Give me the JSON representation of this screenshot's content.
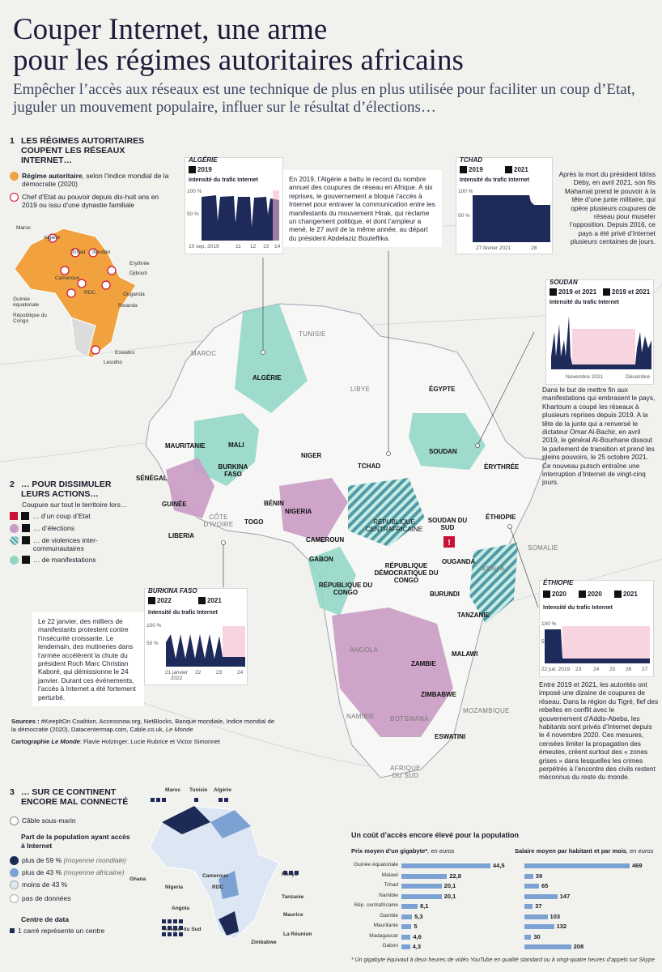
{
  "header": {
    "title_line1": "Couper Internet, une arme",
    "title_line2": "pour les régimes autoritaires africains",
    "subtitle": "Empêcher l’accès aux réseaux est une technique de plus en plus utilisée pour faciliter un coup d’Etat, juguler un mouvement populaire, influer sur le résultat d’élections…"
  },
  "section1": {
    "number": "1",
    "heading": "LES RÉGIMES AUTORITAIRES COUPENT LES RÉSEAUX INTERNET…",
    "legend_regime_bold": "Régime autoritaire",
    "legend_regime_rest": ", selon l’Indice mondial de la démocratie (2020)",
    "legend_chief": "Chef d’Etat au pouvoir depuis dix-huit ans en 2019 ou issu d’une dynastie familiale",
    "minimap_labels": [
      "Maroc",
      "Algérie",
      "Tchad",
      "Soudan",
      "Erythrée",
      "Djibouti",
      "Cameroun",
      "Guinée équatoriale",
      "RDC",
      "Ouganda",
      "Rwanda",
      "République du Congo",
      "Eswatini",
      "Lesotho"
    ]
  },
  "section2": {
    "number": "2",
    "heading": "… POUR DISSIMULER LEURS ACTIONS…",
    "intro": "Coupure sur tout le territoire lors…",
    "items": [
      "… d’un coup d’Etat",
      "… d’élections",
      "… de violences inter-communautaires",
      "… de manifestations"
    ]
  },
  "section3": {
    "number": "3",
    "heading": "… SUR CE CONTINENT ENCORE MAL CONNECTÉ",
    "cable": "Câble sous-marin",
    "share_title": "Part de la population ayant accès à Internet",
    "levels": [
      {
        "label": "plus de 59 %",
        "note": "(moyenne mondiale)",
        "color": "#1d2a55"
      },
      {
        "label": "plus de 43 %",
        "note": "(moyenne africaine)",
        "color": "#7ca1d3"
      },
      {
        "label": "moins de 43 %",
        "note": "",
        "color": "#dde6f3"
      },
      {
        "label": "pas de données",
        "note": "",
        "color": "#ffffff"
      }
    ],
    "dc_title": "Centre de data",
    "dc_note": "1 carré représente un centre",
    "map_labels": [
      "Maroc",
      "Tunisie",
      "Algérie",
      "Ghana",
      "Cameroun",
      "Nigeria",
      "RDC",
      "Kenya",
      "Tanzanie",
      "Angola",
      "Maurice",
      "La Réunion",
      "Afrique du Sud",
      "Zimbabwe"
    ]
  },
  "map_labels": {
    "countries_bold": [
      "ALGÉRIE",
      "MAURITANIE",
      "MALI",
      "NIGER",
      "TCHAD",
      "SOUDAN",
      "ÉGYPTE",
      "SÉNÉGAL",
      "BURKINA FASO",
      "GUINÉE",
      "LIBERIA",
      "BÉNIN",
      "TOGO",
      "NIGERIA",
      "CAMEROUN",
      "GABON",
      "RÉPUBLIQUE CENTRAFRICAINE",
      "SOUDAN DU SUD",
      "RÉPUBLIQUE DÉMOCRATIQUE DU CONGO",
      "RÉPUBLIQUE DU CONGO",
      "OUGANDA",
      "BURUNDI",
      "TANZANIE",
      "ÉTHIOPIE",
      "ÉRYTHRÉE",
      "ZAMBIE",
      "MALAWI",
      "ZIMBABWE",
      "ESWATINI"
    ],
    "countries_light": [
      "MAROC",
      "TUNISIE",
      "LIBYE",
      "CÔTE D’IVOIRE",
      "SOMALIE",
      "KENYA",
      "ANGOLA",
      "NAMIBIE",
      "BOTSWANA",
      "MOZAMBIQUE",
      "AFRIQUE DU SUD"
    ]
  },
  "charts": {
    "algerie": {
      "name": "ALGÉRIE",
      "year": "2019",
      "intens": "Intensité du trafic Internet",
      "y_ticks": [
        "100 %",
        "50 %"
      ],
      "x_ticks": [
        "10 sep. 2019",
        "11",
        "12",
        "13",
        "14"
      ]
    },
    "tchad": {
      "name": "TCHAD",
      "years": [
        "2019",
        "2021"
      ],
      "intens": "Intensité du trafic Internet",
      "y_ticks": [
        "100 %",
        "50 %"
      ],
      "x_ticks": [
        "27 février 2021",
        "28"
      ]
    },
    "soudan": {
      "name": "SOUDAN",
      "years": [
        "2019 et 2021",
        "2019 et 2021"
      ],
      "intens": "Intensité du trafic Internet",
      "x_ticks": [
        "Novembre 2021",
        "Décembre"
      ]
    },
    "burkina": {
      "name": "BURKINA FASO",
      "years": [
        "2022",
        "2021"
      ],
      "intens": "Intensité du trafic Internet",
      "y_ticks": [
        "100 %",
        "50 %"
      ],
      "x_ticks": [
        "21 janvier 2022",
        "22",
        "23",
        "24"
      ]
    },
    "ethiopie": {
      "name": "ÉTHIOPIE",
      "years": [
        "2020",
        "2020",
        "2021"
      ],
      "intens": "Intensité du trafic Internet",
      "y_ticks": [
        "100 %",
        "50 %"
      ],
      "x_ticks": [
        "22 juil. 2019",
        "23",
        "24",
        "25",
        "26",
        "27"
      ]
    }
  },
  "notes": {
    "algerie": "En 2019, l’Algérie a battu le record du nombre annuel des coupures de réseau en Afrique. A six reprises, le gouvernement a bloqué l’accès à Internet pour entraver la communication entre les manifestants du mouvement Hirak, qui réclame un changement politique, et dont l’ampleur a mené, le 27 avril de la même année, au départ du président Abdelaziz Bouteflika.",
    "tchad": "Après la mort du président Idriss Déby, en avril 2021, son fils Mahamat prend le pouvoir à la tête d’une junte militaire, qui opère plusieurs coupures de réseau pour museler l’opposition. Depuis 2016, ce pays a été privé d’Internet plusieurs centaines de jours.",
    "soudan": "Dans le but de mettre fin aux manifestations qui embrasent le pays, Khartoum a coupé les réseaux à plusieurs reprises depuis 2019. A la tête de la junte qui a renversé le dictateur Omar Al-Bachir, en avril 2019, le général Al-Bourhane dissout le parlement de transition et prend les pleins pouvoirs, le 25 octobre 2021. Ce nouveau putsch entraîne une interruption d’Internet de vingt-cinq jours.",
    "burkina": "Le 22 janvier, des milliers de manifestants protestent contre l’insécurité croissante. Le lendemain, des mutineries dans l’armée accélèrent la chute du président Roch Marc Christian Kaboré, qui démissionne le 24 janvier. Durant ces événements, l’accès à Internet a été fortement perturbé.",
    "ethiopie": "Entre 2019 et 2021, les autorités ont imposé une dizaine de coupures de réseau. Dans la région du Tigré, fief des rebelles en conflit avec le gouvernement d’Addis-Abeba, les habitants sont privés d’Internet depuis le 4 novembre 2020. Ces mesures, censées limiter la propagation des émeutes, créent surtout des « zones grises » dans lesquelles les crimes perpétrés à l’encontre des civils restent méconnus du reste du monde."
  },
  "sources": {
    "label": "Sources :",
    "text": "#KeepItOn Coalition, Accessnow.org, NetBlocks, Banque mondiale, Indice mondial de la démocratie (2020), Datacentermap.com, Cable.co.uk,",
    "lemonde": "Le Monde",
    "carto_label": "Cartographie",
    "carto_rest": ": Flavie Holzinger, Lucie Rubrice et Victor Simonnet"
  },
  "cost": {
    "title": "Un coût d’accès encore élevé pour la population",
    "left_title": "Prix moyen d’un gigabyte*",
    "left_unit": ", en euros",
    "right_title": "Salaire moyen par habitant et par mois",
    "right_unit": ", en euros",
    "footnote": "* Un gigabyte équivaut à deux heures de vidéo YouTube en qualité standard ou à vingt-quatre heures d’appels sur Skype"
  },
  "chart_data": {
    "type": "bar",
    "title": "Un coût d’accès encore élevé pour la population",
    "categories": [
      "Guinée équatoriale",
      "Malawi",
      "Tchad",
      "Namibie",
      "Rép. centrafricaine",
      "Gambie",
      "Mauritanie",
      "Madagascar",
      "Gabon"
    ],
    "series": [
      {
        "name": "Prix moyen d’un gigabyte*, en euros",
        "values": [
          44.5,
          22.8,
          20.1,
          20.1,
          8.1,
          5.3,
          5,
          4.6,
          4.3
        ],
        "labels": [
          "44,5",
          "22,8",
          "20,1",
          "20,1",
          "8,1",
          "5,3",
          "5",
          "4,6",
          "4,3"
        ]
      },
      {
        "name": "Salaire moyen par habitant et par mois, en euros",
        "values": [
          469,
          39,
          65,
          147,
          37,
          103,
          132,
          30,
          208
        ],
        "labels": [
          "469",
          "39",
          "65",
          "147",
          "37",
          "103",
          "132",
          "30",
          "208"
        ]
      }
    ]
  },
  "colors": {
    "regime": "#f1a23f",
    "coup": "#c8123a",
    "teal": "#8fd6c5",
    "mauve": "#c99bc4",
    "navy": "#1e2a5a",
    "pink": "#f4b8cb"
  }
}
